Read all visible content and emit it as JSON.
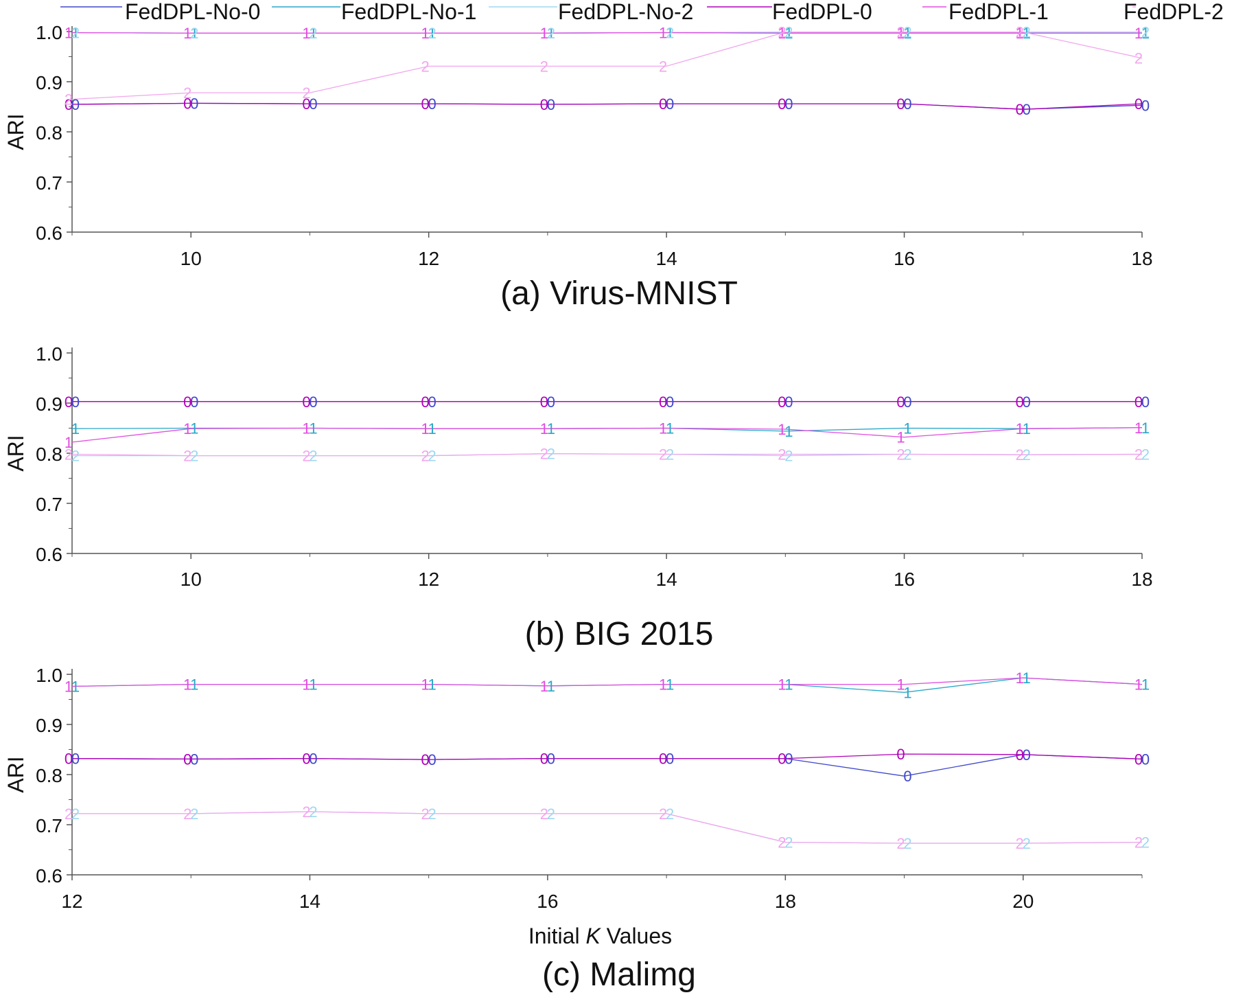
{
  "legend": [
    {
      "label": "FedDPL-No-0",
      "color": "#3f48cc"
    },
    {
      "label": "FedDPL-No-1",
      "color": "#28a8c8"
    },
    {
      "label": "FedDPL-No-2",
      "color": "#9fd8f0"
    },
    {
      "label": "FedDPL-0",
      "color": "#b000b8"
    },
    {
      "label": "FedDPL-1",
      "color": "#e24ce0"
    },
    {
      "label": "FedDPL-2",
      "color": "#f2a6ee"
    }
  ],
  "colors": {
    "FedDPL-No-0": "#3f48cc",
    "FedDPL-No-1": "#28a8c8",
    "FedDPL-No-2": "#9fd8f0",
    "FedDPL-0": "#b000b8",
    "FedDPL-1": "#e24ce0",
    "FedDPL-2": "#f2a6ee",
    "axis": "#555555"
  },
  "chart_data": [
    {
      "type": "line",
      "caption": "(a) Virus-MNIST",
      "xlabel": "",
      "ylabel": "ARI",
      "xlim": [
        9,
        18
      ],
      "ylim": [
        0.6,
        1.0
      ],
      "xticks": [
        10,
        12,
        14,
        16,
        18
      ],
      "yticks": [
        "0.6",
        "0.7",
        "0.8",
        "0.9",
        "1.0"
      ],
      "grid": false,
      "x": [
        9,
        10,
        11,
        12,
        13,
        14,
        15,
        16,
        17,
        18
      ],
      "series": [
        {
          "name": "FedDPL-No-0",
          "marker": "0",
          "values": [
            0.855,
            0.857,
            0.856,
            0.856,
            0.855,
            0.856,
            0.856,
            0.856,
            0.845,
            0.853
          ]
        },
        {
          "name": "FedDPL-No-1",
          "marker": "1",
          "values": [
            0.998,
            0.997,
            0.997,
            0.997,
            0.997,
            0.998,
            0.997,
            0.997,
            0.997,
            0.997
          ]
        },
        {
          "name": "FedDPL-No-2",
          "marker": "2",
          "values": [
            0.998,
            0.997,
            0.997,
            0.997,
            0.997,
            0.998,
            0.999,
            0.999,
            0.999,
            0.999
          ]
        },
        {
          "name": "FedDPL-0",
          "marker": "0",
          "values": [
            0.855,
            0.857,
            0.856,
            0.856,
            0.855,
            0.856,
            0.856,
            0.856,
            0.845,
            0.856
          ]
        },
        {
          "name": "FedDPL-1",
          "marker": "1",
          "values": [
            0.998,
            0.997,
            0.997,
            0.997,
            0.997,
            0.998,
            0.997,
            0.997,
            0.997,
            0.997
          ]
        },
        {
          "name": "FedDPL-2",
          "marker": "2",
          "values": [
            0.865,
            0.878,
            0.878,
            0.931,
            0.931,
            0.931,
            0.999,
            0.999,
            0.999,
            0.947
          ]
        }
      ]
    },
    {
      "type": "line",
      "caption": "(b) BIG 2015",
      "xlabel": "",
      "ylabel": "ARI",
      "xlim": [
        9,
        18
      ],
      "ylim": [
        0.6,
        1.0
      ],
      "xticks": [
        10,
        12,
        14,
        16,
        18
      ],
      "yticks": [
        "0.6",
        "0.7",
        "0.8",
        "0.9",
        "1.0"
      ],
      "grid": false,
      "x": [
        9,
        10,
        11,
        12,
        13,
        14,
        15,
        16,
        17,
        18
      ],
      "series": [
        {
          "name": "FedDPL-No-0",
          "marker": "0",
          "values": [
            0.903,
            0.903,
            0.903,
            0.903,
            0.903,
            0.903,
            0.903,
            0.903,
            0.903,
            0.903
          ]
        },
        {
          "name": "FedDPL-No-1",
          "marker": "1",
          "values": [
            0.849,
            0.85,
            0.85,
            0.849,
            0.849,
            0.85,
            0.844,
            0.85,
            0.849,
            0.851
          ]
        },
        {
          "name": "FedDPL-No-2",
          "marker": "2",
          "values": [
            0.795,
            0.795,
            0.795,
            0.795,
            0.799,
            0.798,
            0.795,
            0.798,
            0.797,
            0.798
          ]
        },
        {
          "name": "FedDPL-0",
          "marker": "0",
          "values": [
            0.903,
            0.903,
            0.903,
            0.903,
            0.903,
            0.903,
            0.903,
            0.903,
            0.903,
            0.903
          ]
        },
        {
          "name": "FedDPL-1",
          "marker": "1",
          "values": [
            0.822,
            0.849,
            0.85,
            0.849,
            0.849,
            0.85,
            0.848,
            0.832,
            0.849,
            0.851
          ]
        },
        {
          "name": "FedDPL-2",
          "marker": "2",
          "values": [
            0.798,
            0.795,
            0.795,
            0.795,
            0.799,
            0.798,
            0.798,
            0.798,
            0.797,
            0.798
          ]
        }
      ]
    },
    {
      "type": "line",
      "caption": "(c) Malimg",
      "xlabel": "Initial K Values",
      "ylabel": "ARI",
      "xlim": [
        12,
        21
      ],
      "ylim": [
        0.6,
        1.0
      ],
      "xticks": [
        12,
        14,
        16,
        18,
        20
      ],
      "yticks": [
        "0.6",
        "0.7",
        "0.8",
        "0.9",
        "1.0"
      ],
      "grid": false,
      "x": [
        12,
        13,
        14,
        15,
        16,
        17,
        18,
        19,
        20,
        21
      ],
      "series": [
        {
          "name": "FedDPL-No-0",
          "marker": "0",
          "values": [
            0.832,
            0.831,
            0.832,
            0.83,
            0.832,
            0.832,
            0.832,
            0.797,
            0.84,
            0.831
          ]
        },
        {
          "name": "FedDPL-No-1",
          "marker": "1",
          "values": [
            0.976,
            0.98,
            0.98,
            0.98,
            0.977,
            0.98,
            0.98,
            0.964,
            0.993,
            0.98
          ]
        },
        {
          "name": "FedDPL-No-2",
          "marker": "2",
          "values": [
            0.722,
            0.722,
            0.726,
            0.722,
            0.722,
            0.722,
            0.665,
            0.663,
            0.663,
            0.665
          ]
        },
        {
          "name": "FedDPL-0",
          "marker": "0",
          "values": [
            0.832,
            0.831,
            0.832,
            0.83,
            0.832,
            0.832,
            0.832,
            0.841,
            0.84,
            0.831
          ]
        },
        {
          "name": "FedDPL-1",
          "marker": "1",
          "values": [
            0.976,
            0.98,
            0.98,
            0.98,
            0.977,
            0.98,
            0.98,
            0.98,
            0.993,
            0.98
          ]
        },
        {
          "name": "FedDPL-2",
          "marker": "2",
          "values": [
            0.722,
            0.722,
            0.726,
            0.722,
            0.722,
            0.722,
            0.665,
            0.663,
            0.663,
            0.665
          ]
        }
      ]
    }
  ]
}
